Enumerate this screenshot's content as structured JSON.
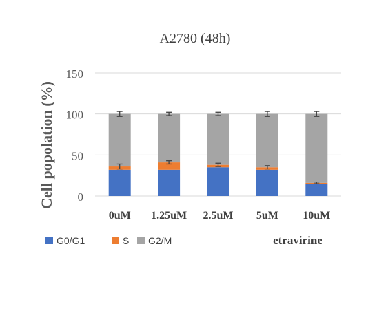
{
  "chart_data": {
    "type": "bar",
    "stacked": true,
    "title": "A2780 (48h)",
    "xlabel": "etravirine",
    "ylabel": "Cell popolation (%)",
    "ylim": [
      0,
      150
    ],
    "yticks": [
      "0",
      "50",
      "100",
      "150"
    ],
    "categories": [
      "0uM",
      "1.25uM",
      "2.5uM",
      "5uM",
      "10uM"
    ],
    "series": [
      {
        "name": "G0/G1",
        "color": "#4472c4",
        "values": [
          32,
          32,
          35,
          32,
          15
        ]
      },
      {
        "name": "S",
        "color": "#ed7d31",
        "values": [
          4,
          9,
          3,
          3,
          1
        ]
      },
      {
        "name": "G2/M",
        "color": "#a5a5a5",
        "values": [
          64,
          59,
          62,
          65,
          84
        ]
      }
    ],
    "error_bars": {
      "S": [
        3,
        2,
        2,
        2,
        1
      ],
      "G2/M": [
        3,
        2,
        2,
        3,
        3
      ]
    },
    "grid": true,
    "legend_position": "bottom-left"
  }
}
